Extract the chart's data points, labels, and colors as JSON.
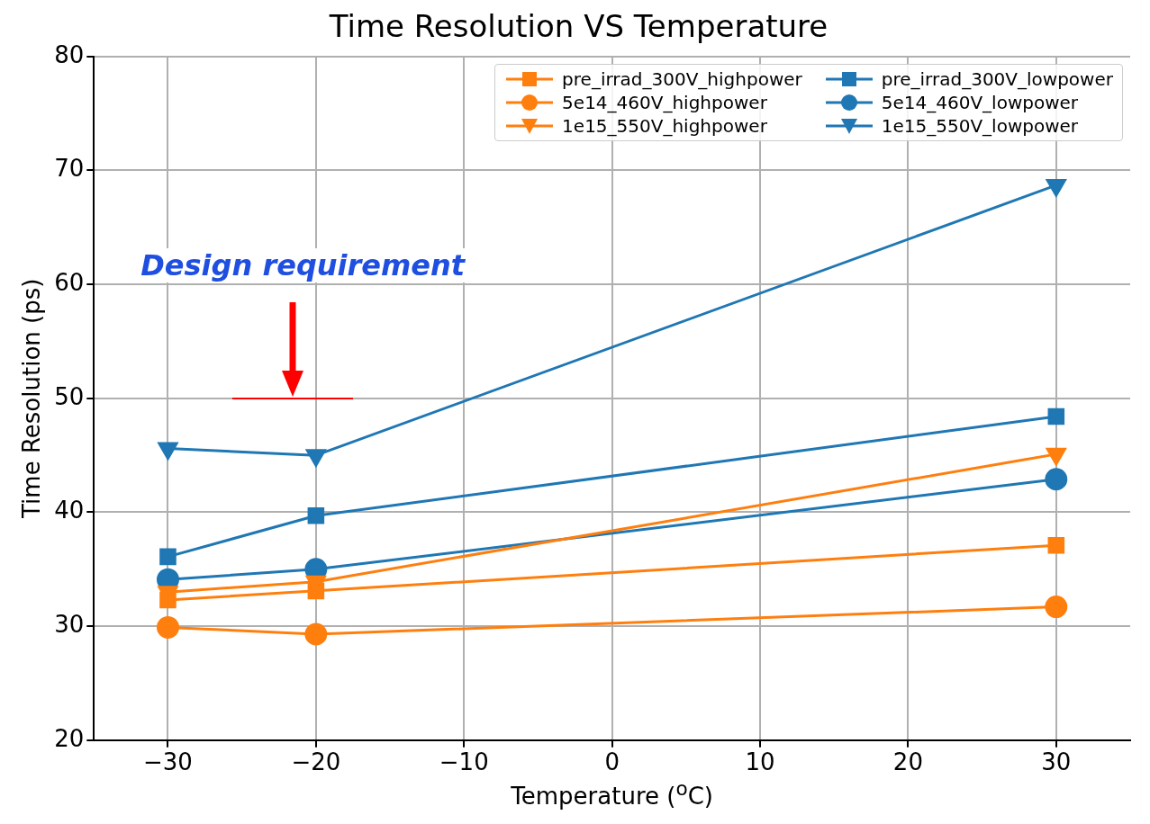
{
  "chart_data": {
    "type": "line",
    "title": "Time Resolution VS Temperature",
    "xlabel": "Temperature ($^{o}$C)",
    "ylabel": "Time Resolution (ps)",
    "x": [
      -30,
      -20,
      30
    ],
    "xlim": [
      -35,
      35
    ],
    "xticks": [
      {
        "value": -30,
        "label": "−30"
      },
      {
        "value": -20,
        "label": "−20"
      },
      {
        "value": -10,
        "label": "−10"
      },
      0,
      10,
      20,
      30
    ],
    "ylim": [
      20,
      80
    ],
    "yticks": [
      20,
      30,
      40,
      50,
      60,
      70,
      80
    ],
    "grid": true,
    "legend": "top right",
    "annotations": [
      "Design requirement"
    ],
    "series": [
      {
        "name": "pre_irrad_300V_highpower",
        "color": "#ff7f0e",
        "marker": "square",
        "values": [
          32.3,
          33.1,
          37.1
        ]
      },
      {
        "name": "5e14_460V_highpower",
        "color": "#ff7f0e",
        "marker": "circle",
        "values": [
          29.9,
          29.3,
          31.7
        ]
      },
      {
        "name": "1e15_550V_highpower",
        "color": "#ff7f0e",
        "marker": "triangle",
        "values": [
          33.0,
          33.9,
          45.1
        ]
      },
      {
        "name": "pre_irrad_300V_lowpower",
        "color": "#1f77b4",
        "marker": "square",
        "values": [
          36.1,
          39.7,
          48.4
        ]
      },
      {
        "name": "5e14_460V_lowpower",
        "color": "#1f77b4",
        "marker": "circle",
        "values": [
          34.1,
          35.0,
          42.9
        ]
      },
      {
        "name": "1e15_550V_lowpower",
        "color": "#1f77b4",
        "marker": "triangle",
        "values": [
          45.6,
          45.0,
          68.7
        ]
      }
    ]
  }
}
